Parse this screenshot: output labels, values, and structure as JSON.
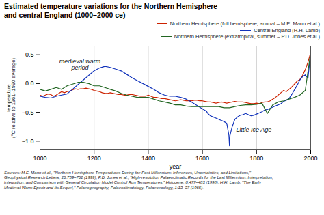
{
  "chart_data": {
    "type": "line",
    "title": "Estimated temperature variations for the Northern Hemisphere\nand central England (1000–2000 ce)",
    "xlabel": "year",
    "ylabel": "temperature\n(°C relative to 1961–1990 average)",
    "xlim": [
      1000,
      2000
    ],
    "ylim": [
      -1.15,
      0.65
    ],
    "xticks": [
      1000,
      1200,
      1400,
      1600,
      1800,
      2000
    ],
    "yticks": [
      {
        "value": -1.0,
        "label": "−1.0"
      },
      {
        "value": -0.5,
        "label": "−0.5"
      },
      {
        "value": 0.0,
        "label": "0.0"
      },
      0.5
    ],
    "grid": "x",
    "legend": "upper right",
    "series": [
      {
        "name": "Northern Hemisphere (full hemisphere, annual – M.E. Mann et al.)",
        "color": "#cc2200",
        "x": [
          1000,
          1010,
          1020,
          1030,
          1040,
          1050,
          1060,
          1070,
          1080,
          1090,
          1100,
          1110,
          1120,
          1130,
          1140,
          1150,
          1160,
          1170,
          1180,
          1190,
          1200,
          1210,
          1220,
          1230,
          1240,
          1250,
          1260,
          1270,
          1280,
          1290,
          1300,
          1310,
          1320,
          1330,
          1340,
          1350,
          1360,
          1370,
          1380,
          1390,
          1400,
          1410,
          1420,
          1430,
          1440,
          1450,
          1460,
          1470,
          1480,
          1490,
          1500,
          1510,
          1520,
          1530,
          1540,
          1550,
          1560,
          1570,
          1580,
          1590,
          1600,
          1610,
          1620,
          1630,
          1640,
          1650,
          1660,
          1670,
          1680,
          1690,
          1700,
          1710,
          1720,
          1730,
          1740,
          1750,
          1760,
          1770,
          1780,
          1790,
          1800,
          1810,
          1820,
          1830,
          1840,
          1850,
          1860,
          1870,
          1880,
          1890,
          1900,
          1910,
          1920,
          1930,
          1940,
          1950,
          1960,
          1970,
          1980,
          1990,
          2000
        ],
        "values": [
          -0.2,
          -0.22,
          -0.2,
          -0.18,
          -0.19,
          -0.22,
          -0.2,
          -0.17,
          -0.14,
          -0.16,
          -0.14,
          -0.13,
          -0.11,
          -0.09,
          -0.1,
          -0.09,
          -0.09,
          -0.08,
          -0.09,
          -0.1,
          -0.12,
          -0.13,
          -0.14,
          -0.16,
          -0.17,
          -0.17,
          -0.16,
          -0.17,
          -0.18,
          -0.19,
          -0.19,
          -0.2,
          -0.2,
          -0.19,
          -0.19,
          -0.2,
          -0.21,
          -0.22,
          -0.22,
          -0.22,
          -0.2,
          -0.22,
          -0.24,
          -0.24,
          -0.25,
          -0.26,
          -0.26,
          -0.27,
          -0.28,
          -0.29,
          -0.3,
          -0.29,
          -0.28,
          -0.29,
          -0.3,
          -0.3,
          -0.3,
          -0.29,
          -0.29,
          -0.3,
          -0.3,
          -0.31,
          -0.32,
          -0.32,
          -0.33,
          -0.34,
          -0.33,
          -0.32,
          -0.33,
          -0.34,
          -0.33,
          -0.32,
          -0.31,
          -0.32,
          -0.32,
          -0.32,
          -0.33,
          -0.34,
          -0.35,
          -0.35,
          -0.34,
          -0.35,
          -0.33,
          -0.32,
          -0.32,
          -0.3,
          -0.27,
          -0.24,
          -0.2,
          -0.16,
          -0.12,
          -0.14,
          -0.1,
          -0.06,
          -0.01,
          0.04,
          0.07,
          0.14,
          0.24,
          0.37,
          0.54
        ]
      },
      {
        "name": "Central England (H.H. Lamb)",
        "color": "#1133bb",
        "x": [
          1000,
          1020,
          1040,
          1060,
          1080,
          1100,
          1120,
          1140,
          1160,
          1180,
          1200,
          1220,
          1240,
          1260,
          1280,
          1300,
          1320,
          1340,
          1360,
          1380,
          1400,
          1420,
          1440,
          1460,
          1480,
          1500,
          1520,
          1540,
          1560,
          1580,
          1600,
          1615,
          1620,
          1630,
          1640,
          1650,
          1660,
          1670,
          1680,
          1690,
          1698,
          1700,
          1702,
          1710,
          1720,
          1730,
          1740,
          1750,
          1760,
          1770,
          1780,
          1790,
          1800,
          1810,
          1820,
          1830,
          1840,
          1850,
          1860,
          1870,
          1880,
          1890,
          1900,
          1910,
          1920,
          1930,
          1940,
          1950,
          1960,
          1970,
          1980,
          1990,
          2000
        ],
        "values": [
          -0.22,
          -0.24,
          -0.25,
          -0.22,
          -0.2,
          -0.18,
          -0.1,
          -0.02,
          0.06,
          0.14,
          0.22,
          0.27,
          0.3,
          0.28,
          0.25,
          0.22,
          0.16,
          0.1,
          0.05,
          0.0,
          -0.05,
          -0.1,
          -0.16,
          -0.2,
          -0.22,
          -0.22,
          -0.24,
          -0.27,
          -0.32,
          -0.38,
          -0.44,
          -0.48,
          -0.52,
          -0.56,
          -0.58,
          -0.6,
          -0.62,
          -0.64,
          -0.66,
          -0.69,
          -0.9,
          -1.08,
          -0.9,
          -0.75,
          -0.62,
          -0.58,
          -0.55,
          -0.54,
          -0.52,
          -0.54,
          -0.56,
          -0.55,
          -0.53,
          -0.51,
          -0.49,
          -0.46,
          -0.45,
          -0.43,
          -0.41,
          -0.39,
          -0.37,
          -0.35,
          -0.31,
          -0.29,
          -0.26,
          -0.19,
          -0.11,
          -0.03,
          0.06,
          0.12,
          0.15,
          0.09,
          0.54
        ]
      },
      {
        "name": "Northern Hemisphere (extratropical, summer – P.D. Jones et al.)",
        "color": "#226622",
        "x": [
          1000,
          1020,
          1040,
          1060,
          1080,
          1100,
          1120,
          1140,
          1160,
          1180,
          1200,
          1220,
          1240,
          1260,
          1280,
          1300,
          1320,
          1340,
          1360,
          1380,
          1400,
          1420,
          1440,
          1460,
          1480,
          1500,
          1520,
          1540,
          1560,
          1580,
          1600,
          1620,
          1640,
          1660,
          1680,
          1700,
          1720,
          1740,
          1760,
          1780,
          1800,
          1820,
          1840,
          1860,
          1880,
          1900,
          1920,
          1940,
          1960,
          1980,
          2000
        ],
        "values": [
          -0.1,
          -0.13,
          -0.1,
          -0.07,
          -0.1,
          -0.04,
          -0.01,
          0.02,
          0.02,
          0.0,
          -0.04,
          -0.04,
          -0.07,
          -0.1,
          -0.13,
          -0.17,
          -0.2,
          -0.22,
          -0.24,
          -0.24,
          -0.24,
          -0.27,
          -0.3,
          -0.32,
          -0.34,
          -0.37,
          -0.37,
          -0.39,
          -0.4,
          -0.4,
          -0.4,
          -0.4,
          -0.4,
          -0.4,
          -0.42,
          -0.42,
          -0.4,
          -0.38,
          -0.37,
          -0.37,
          -0.36,
          -0.34,
          -0.52,
          -0.37,
          -0.32,
          -0.3,
          -0.27,
          -0.24,
          -0.2,
          -0.12,
          0.54
        ]
      }
    ],
    "annotations": [
      {
        "text": "medieval warm\nperiod",
        "x": 1148,
        "y": 0.42
      },
      {
        "text": "Little Ice Age",
        "x": 1790,
        "y": -0.76
      }
    ],
    "caption": "Sources: M.E. Mann et al., \"Northern Hemisphere Temperatures During the Past Millennium: Inferences, Uncertainties, and Limitations,\"\nGeophysical Research Letters, 26:759–762 (1999); P.D. Jones et al., \"High-resolution Palaeoclimatic Records for the Last Millennium: Interpretation,\nIntegration, and Comparison with General Circulation Model Control Run Temperatures,\" Holocene, 8:477–483 (1998); H.H. Lamb, \"The Early\nMedieval Warm Epoch and Its Sequel,\" Palaeogeography, Palaeoclimatology, Palaeoecology, 1:13–37 (1965)."
  }
}
